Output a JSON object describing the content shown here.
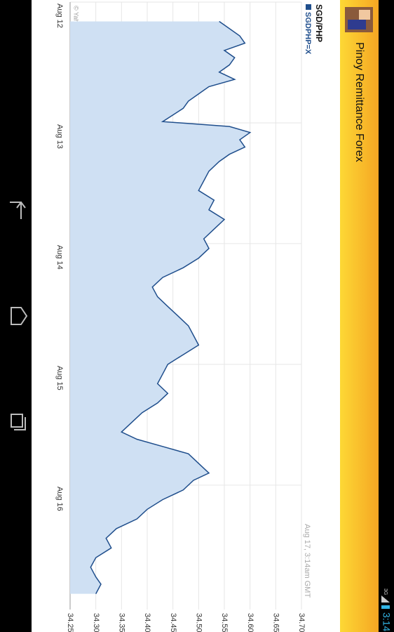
{
  "status": {
    "network": "3G",
    "time": "3:14"
  },
  "app_bar": {
    "title": "Pinoy Remittance Forex"
  },
  "chart_data": {
    "type": "area",
    "title": "SGD/PHP",
    "annotations": [
      "Aug 17, 3:14am GMT",
      "© Yahoo!"
    ],
    "series": [
      {
        "name": "SGDPHP=X",
        "color": "#1f4e8c",
        "fill": "#cfe0f3",
        "x": [
          0.16,
          0.22,
          0.28,
          0.34,
          0.4,
          0.46,
          0.52,
          0.58,
          0.64,
          0.7,
          0.76,
          0.82,
          0.88,
          0.99,
          1.03,
          1.08,
          1.14,
          1.2,
          1.26,
          1.32,
          1.4,
          1.48,
          1.56,
          1.64,
          1.72,
          1.8,
          1.88,
          1.96,
          2.04,
          2.12,
          2.2,
          2.28,
          2.36,
          2.44,
          2.52,
          2.6,
          2.68,
          2.76,
          2.84,
          2.92,
          3.0,
          3.08,
          3.16,
          3.24,
          3.32,
          3.4,
          3.48,
          3.56,
          3.62,
          3.68,
          3.74,
          3.82,
          3.9,
          3.96,
          4.04,
          4.12,
          4.2,
          4.28,
          4.36,
          4.44,
          4.52,
          4.6,
          4.68,
          4.76,
          4.82,
          4.9
        ],
        "values": [
          34.54,
          34.56,
          34.58,
          34.59,
          34.55,
          34.57,
          34.56,
          34.54,
          34.57,
          34.52,
          34.5,
          34.48,
          34.47,
          34.43,
          34.56,
          34.6,
          34.58,
          34.59,
          34.56,
          34.54,
          34.52,
          34.51,
          34.5,
          34.53,
          34.52,
          34.55,
          34.53,
          34.51,
          34.52,
          34.5,
          34.47,
          34.43,
          34.41,
          34.42,
          34.44,
          34.46,
          34.48,
          34.49,
          34.5,
          34.47,
          34.44,
          34.43,
          34.42,
          34.44,
          34.42,
          34.39,
          34.37,
          34.35,
          34.38,
          34.43,
          34.48,
          34.5,
          34.52,
          34.49,
          34.47,
          34.43,
          34.4,
          34.38,
          34.34,
          34.32,
          34.33,
          34.3,
          34.29,
          34.3,
          34.31,
          34.3
        ]
      }
    ],
    "xlim": [
      0,
      5.03
    ],
    "xticks": [
      {
        "value": 0,
        "label": "Aug 12"
      },
      {
        "value": 1,
        "label": "Aug 13"
      },
      {
        "value": 2,
        "label": "Aug 14"
      },
      {
        "value": 3,
        "label": "Aug 15"
      },
      {
        "value": 4,
        "label": "Aug 16"
      }
    ],
    "ylim": [
      34.25,
      34.7
    ],
    "yticks": [
      34.25,
      {
        "value": 34.3,
        "label": "34.30"
      },
      34.35,
      {
        "value": 34.4,
        "label": "34.40"
      },
      34.45,
      {
        "value": 34.5,
        "label": "34.50"
      },
      34.55,
      {
        "value": 34.6,
        "label": "34.60"
      },
      34.65,
      {
        "value": 34.7,
        "label": "34.70"
      }
    ],
    "grid": true
  }
}
